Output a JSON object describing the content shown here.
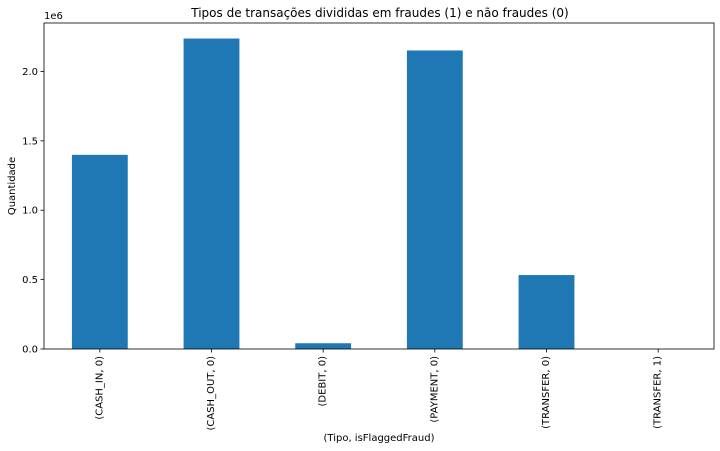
{
  "chart_data": {
    "type": "bar",
    "title": "Tipos de transações divididas em fraudes (1) e não fraudes (0)",
    "xlabel": "(Tipo, isFlaggedFraud)",
    "ylabel": "Quantidade",
    "scale_label": "1e6",
    "categories": [
      "(CASH_IN, 0)",
      "(CASH_OUT, 0)",
      "(DEBIT, 0)",
      "(PAYMENT, 0)",
      "(TRANSFER, 0)",
      "(TRANSFER, 1)"
    ],
    "values": [
      1399284,
      2237500,
      41432,
      2151495,
      532909,
      16
    ],
    "ylim": [
      0,
      2349375
    ],
    "yticks": [
      0,
      500000,
      1000000,
      1500000,
      2000000
    ],
    "ytick_labels": [
      "0.0",
      "0.5",
      "1.0",
      "1.5",
      "2.0"
    ],
    "bar_color": "#1f77b4",
    "grid": false,
    "legend": "none"
  }
}
